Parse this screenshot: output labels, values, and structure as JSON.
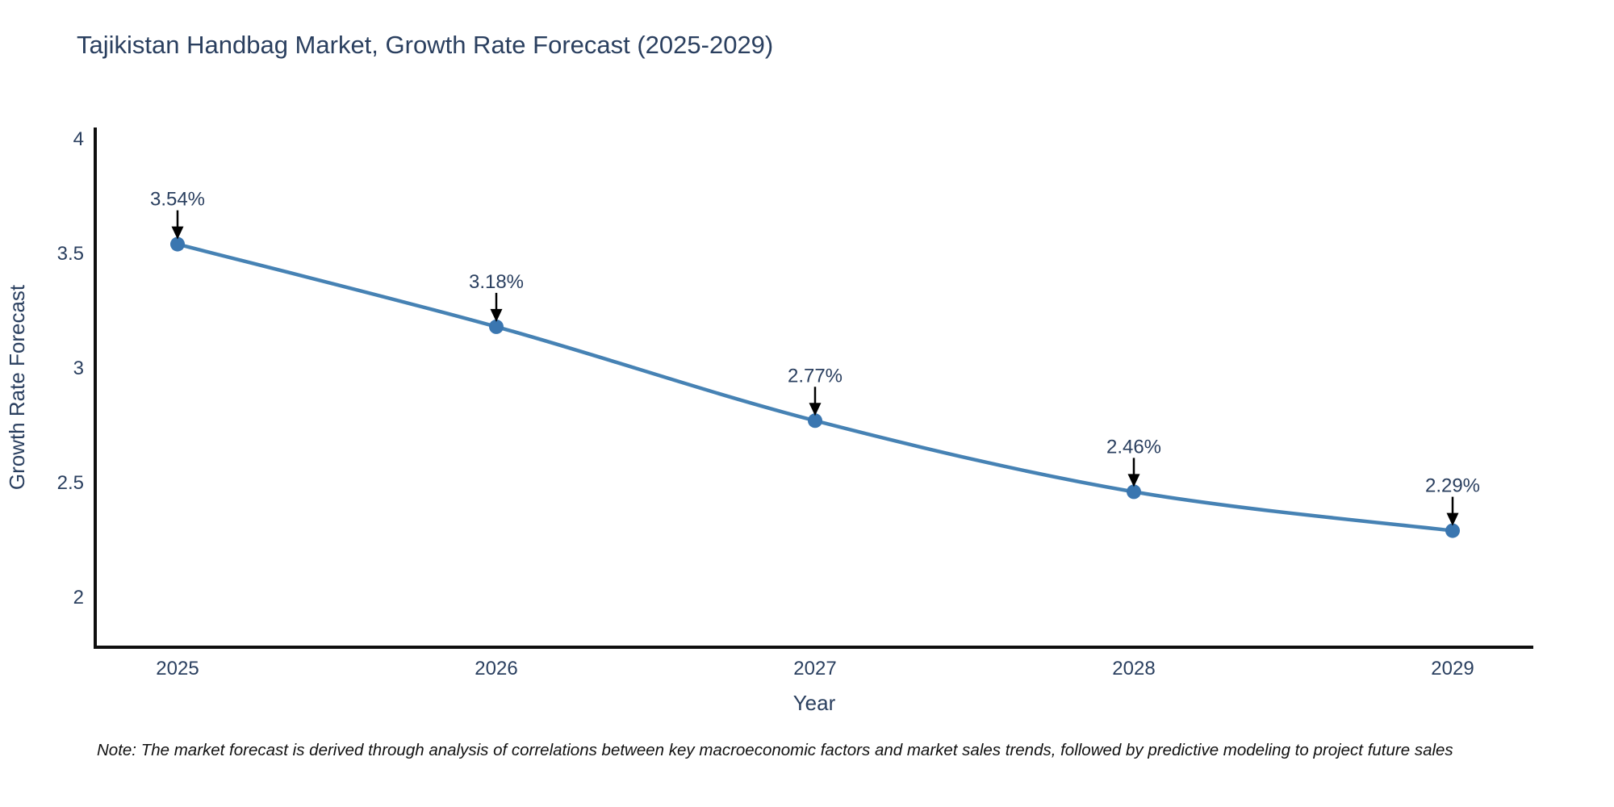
{
  "title": "Tajikistan Handbag Market, Growth Rate Forecast (2025-2029)",
  "note": "Note: The market forecast is derived through analysis of correlations between key macroeconomic factors and market sales trends, followed by predictive modeling to project future sales",
  "chart_data": {
    "type": "line",
    "title": "Tajikistan Handbag Market, Growth Rate Forecast (2025-2029)",
    "xlabel": "Year",
    "ylabel": "Growth Rate Forecast",
    "x": [
      2025,
      2026,
      2027,
      2028,
      2029
    ],
    "values": [
      3.54,
      3.18,
      2.77,
      2.46,
      2.29
    ],
    "point_labels": [
      "3.54%",
      "3.18%",
      "2.77%",
      "2.46%",
      "2.29%"
    ],
    "yticks": [
      2,
      2.5,
      3,
      3.5,
      4
    ],
    "ylim": [
      1.78,
      4.05
    ],
    "xlim": [
      2024.74,
      2029.25
    ],
    "grid": false,
    "legend": "none",
    "line_shape": "spline",
    "annotations_arrow": "down",
    "colors": {
      "line": "#4682b4",
      "marker": "#3a76b0",
      "text": "#2a3f5f",
      "axis": "#0f0f0f",
      "arrow": "#000000",
      "background": "#ffffff"
    }
  }
}
